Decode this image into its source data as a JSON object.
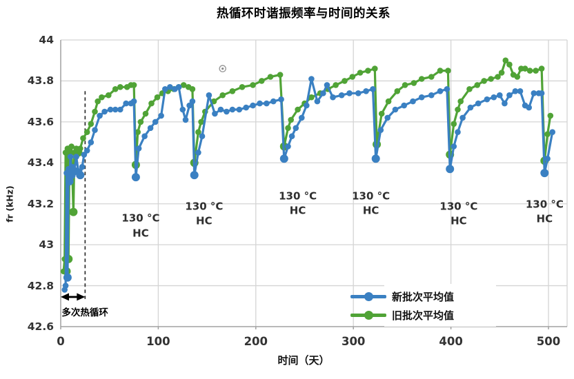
{
  "chart_data": {
    "type": "line",
    "title": "热循环时谐振频率与时间的关系",
    "xlabel": "时间（天）",
    "ylabel": "fr (kHz)",
    "xlim": [
      0,
      519
    ],
    "ylim": [
      42.6,
      44
    ],
    "grid": true,
    "x_ticks": [
      {
        "label": "0",
        "value": 0
      },
      {
        "label": "100",
        "value": 100
      },
      {
        "label": "200",
        "value": 200
      },
      {
        "label": "300",
        "value": 300
      },
      {
        "label": "400",
        "value": 400
      },
      {
        "label": "500",
        "value": 500
      }
    ],
    "y_ticks": [
      {
        "label": "44",
        "value": 44
      },
      {
        "label": "43.8",
        "value": 43.8
      },
      {
        "label": "43.6",
        "value": 43.6
      },
      {
        "label": "43.4",
        "value": 43.4
      },
      {
        "label": "43.2",
        "value": 43.2
      },
      {
        "label": "43",
        "value": 43
      },
      {
        "label": "42.8",
        "value": 42.8
      },
      {
        "label": "42.6",
        "value": 42.6
      }
    ],
    "legend_position": "inside-bottom-right",
    "series": [
      {
        "name": "旧批次平均值",
        "color": "#50a336",
        "points": [
          [
            3,
            42.87
          ],
          [
            4,
            42.93
          ],
          [
            5,
            43.45
          ],
          [
            6,
            42.87
          ],
          [
            7,
            43.47
          ],
          [
            8,
            42.93
          ],
          [
            9,
            43.45
          ],
          [
            11,
            43.48
          ],
          [
            13,
            43.16
          ],
          [
            14,
            43.45
          ],
          [
            16,
            43.47
          ],
          [
            18,
            43.45
          ],
          [
            20,
            43.47
          ],
          [
            23,
            43.52
          ],
          [
            27,
            43.55
          ],
          [
            31,
            43.59
          ],
          [
            35,
            43.65
          ],
          [
            38,
            43.7
          ],
          [
            42,
            43.72
          ],
          [
            49,
            43.73
          ],
          [
            56,
            43.76
          ],
          [
            61,
            43.77
          ],
          [
            68,
            43.77
          ],
          [
            72,
            43.78
          ],
          [
            75,
            43.78
          ],
          [
            77,
            43.39
          ],
          [
            79,
            43.55
          ],
          [
            82,
            43.6
          ],
          [
            87,
            43.64
          ],
          [
            93,
            43.69
          ],
          [
            99,
            43.72
          ],
          [
            104,
            43.74
          ],
          [
            110,
            43.75
          ],
          [
            116,
            43.76
          ],
          [
            121,
            43.77
          ],
          [
            126,
            43.78
          ],
          [
            131,
            43.77
          ],
          [
            135,
            43.76
          ],
          [
            137,
            43.4
          ],
          [
            141,
            43.55
          ],
          [
            144,
            43.6
          ],
          [
            148,
            43.65
          ],
          [
            157,
            43.7
          ],
          [
            166,
            43.73
          ],
          [
            176,
            43.75
          ],
          [
            186,
            43.77
          ],
          [
            197,
            43.78
          ],
          [
            206,
            43.8
          ],
          [
            215,
            43.82
          ],
          [
            225,
            43.83
          ],
          [
            229,
            43.48
          ],
          [
            233,
            43.57
          ],
          [
            236,
            43.61
          ],
          [
            243,
            43.66
          ],
          [
            250,
            43.69
          ],
          [
            257,
            43.72
          ],
          [
            266,
            43.74
          ],
          [
            274,
            43.76
          ],
          [
            282,
            43.78
          ],
          [
            291,
            43.8
          ],
          [
            299,
            43.82
          ],
          [
            307,
            43.84
          ],
          [
            315,
            43.85
          ],
          [
            322,
            43.86
          ],
          [
            324,
            43.49
          ],
          [
            329,
            43.64
          ],
          [
            336,
            43.7
          ],
          [
            345,
            43.75
          ],
          [
            353,
            43.78
          ],
          [
            362,
            43.79
          ],
          [
            370,
            43.81
          ],
          [
            380,
            43.82
          ],
          [
            389,
            43.85
          ],
          [
            397,
            43.85
          ],
          [
            399,
            43.44
          ],
          [
            403,
            43.59
          ],
          [
            407,
            43.66
          ],
          [
            410,
            43.7
          ],
          [
            419,
            43.76
          ],
          [
            427,
            43.78
          ],
          [
            434,
            43.8
          ],
          [
            441,
            43.81
          ],
          [
            448,
            43.82
          ],
          [
            452,
            43.84
          ],
          [
            456,
            43.9
          ],
          [
            460,
            43.88
          ],
          [
            464,
            43.83
          ],
          [
            468,
            43.82
          ],
          [
            472,
            43.86
          ],
          [
            476,
            43.86
          ],
          [
            481,
            43.85
          ],
          [
            487,
            43.85
          ],
          [
            493,
            43.86
          ],
          [
            496,
            43.41
          ],
          [
            499,
            43.54
          ],
          [
            502,
            43.63
          ]
        ]
      },
      {
        "name": "新批次平均值",
        "color": "#3a80c2",
        "points": [
          [
            4,
            42.78
          ],
          [
            5,
            42.8
          ],
          [
            6,
            43.35
          ],
          [
            7,
            42.84
          ],
          [
            8,
            43.37
          ],
          [
            9,
            43.31
          ],
          [
            10,
            43.43
          ],
          [
            11,
            43.34
          ],
          [
            12,
            43.38
          ],
          [
            14,
            43.36
          ],
          [
            16,
            43.43
          ],
          [
            18,
            43.36
          ],
          [
            20,
            43.34
          ],
          [
            22,
            43.38
          ],
          [
            24,
            43.44
          ],
          [
            27,
            43.46
          ],
          [
            31,
            43.5
          ],
          [
            35,
            43.56
          ],
          [
            40,
            43.63
          ],
          [
            45,
            43.65
          ],
          [
            51,
            43.66
          ],
          [
            56,
            43.66
          ],
          [
            61,
            43.66
          ],
          [
            67,
            43.69
          ],
          [
            72,
            43.69
          ],
          [
            75,
            43.7
          ],
          [
            77,
            43.33
          ],
          [
            80,
            43.47
          ],
          [
            86,
            43.53
          ],
          [
            92,
            43.57
          ],
          [
            97,
            43.6
          ],
          [
            103,
            43.63
          ],
          [
            107,
            43.76
          ],
          [
            112,
            43.77
          ],
          [
            117,
            43.76
          ],
          [
            121,
            43.77
          ],
          [
            125,
            43.66
          ],
          [
            128,
            43.61
          ],
          [
            132,
            43.68
          ],
          [
            135,
            43.7
          ],
          [
            137,
            43.34
          ],
          [
            141,
            43.45
          ],
          [
            145,
            43.53
          ],
          [
            152,
            43.73
          ],
          [
            158,
            43.64
          ],
          [
            164,
            43.66
          ],
          [
            170,
            43.65
          ],
          [
            176,
            43.66
          ],
          [
            183,
            43.66
          ],
          [
            190,
            43.67
          ],
          [
            197,
            43.68
          ],
          [
            204,
            43.69
          ],
          [
            211,
            43.69
          ],
          [
            218,
            43.7
          ],
          [
            226,
            43.71
          ],
          [
            229,
            43.42
          ],
          [
            233,
            43.48
          ],
          [
            237,
            43.53
          ],
          [
            241,
            43.57
          ],
          [
            247,
            43.62
          ],
          [
            252,
            43.68
          ],
          [
            257,
            43.81
          ],
          [
            263,
            43.7
          ],
          [
            269,
            43.74
          ],
          [
            273,
            43.78
          ],
          [
            279,
            43.72
          ],
          [
            288,
            43.73
          ],
          [
            296,
            43.74
          ],
          [
            305,
            43.74
          ],
          [
            313,
            43.75
          ],
          [
            320,
            43.76
          ],
          [
            323,
            43.42
          ],
          [
            328,
            43.56
          ],
          [
            335,
            43.62
          ],
          [
            343,
            43.66
          ],
          [
            352,
            43.68
          ],
          [
            361,
            43.7
          ],
          [
            370,
            43.72
          ],
          [
            380,
            43.73
          ],
          [
            389,
            43.75
          ],
          [
            396,
            43.76
          ],
          [
            399,
            43.37
          ],
          [
            403,
            43.48
          ],
          [
            407,
            43.55
          ],
          [
            412,
            43.62
          ],
          [
            420,
            43.67
          ],
          [
            428,
            43.69
          ],
          [
            437,
            43.71
          ],
          [
            444,
            43.72
          ],
          [
            450,
            43.73
          ],
          [
            455,
            43.69
          ],
          [
            460,
            43.73
          ],
          [
            466,
            43.75
          ],
          [
            471,
            43.75
          ],
          [
            476,
            43.68
          ],
          [
            480,
            43.67
          ],
          [
            485,
            43.74
          ],
          [
            490,
            43.74
          ],
          [
            493,
            43.74
          ],
          [
            496,
            43.35
          ],
          [
            499,
            43.42
          ],
          [
            504,
            43.55
          ]
        ]
      }
    ],
    "annotations": {
      "hc_labels": [
        {
          "line1": "130 °C",
          "line2": "HC",
          "day": 82,
          "value": 43.09
        },
        {
          "line1": "130 °C",
          "line2": "HC",
          "day": 147,
          "value": 43.15
        },
        {
          "line1": "130 °C",
          "line2": "HC",
          "day": 243,
          "value": 43.2
        },
        {
          "line1": "130 °C",
          "line2": "HC",
          "day": 318,
          "value": 43.2
        },
        {
          "line1": "130 °C",
          "line2": "HC",
          "day": 408,
          "value": 43.15
        },
        {
          "line1": "130 °C",
          "line2": "HC",
          "day": 496,
          "value": 43.16
        }
      ],
      "multi_cycle_label": {
        "text": "多次热循环",
        "day": 1,
        "value": 42.674
      },
      "dashed_line": {
        "day": 25,
        "from_value": 43.75,
        "to_value": 42.735
      },
      "double_arrow": {
        "value": 42.745,
        "from_day": 0,
        "to_day": 25
      },
      "artifact_glyph": {
        "day": 166,
        "value": 43.86
      }
    },
    "colors": {
      "grid": "#d4d4d4",
      "axis": "#a0a0a0",
      "tick_text": "#333333",
      "annotation_text": "#2f2f2f"
    }
  }
}
